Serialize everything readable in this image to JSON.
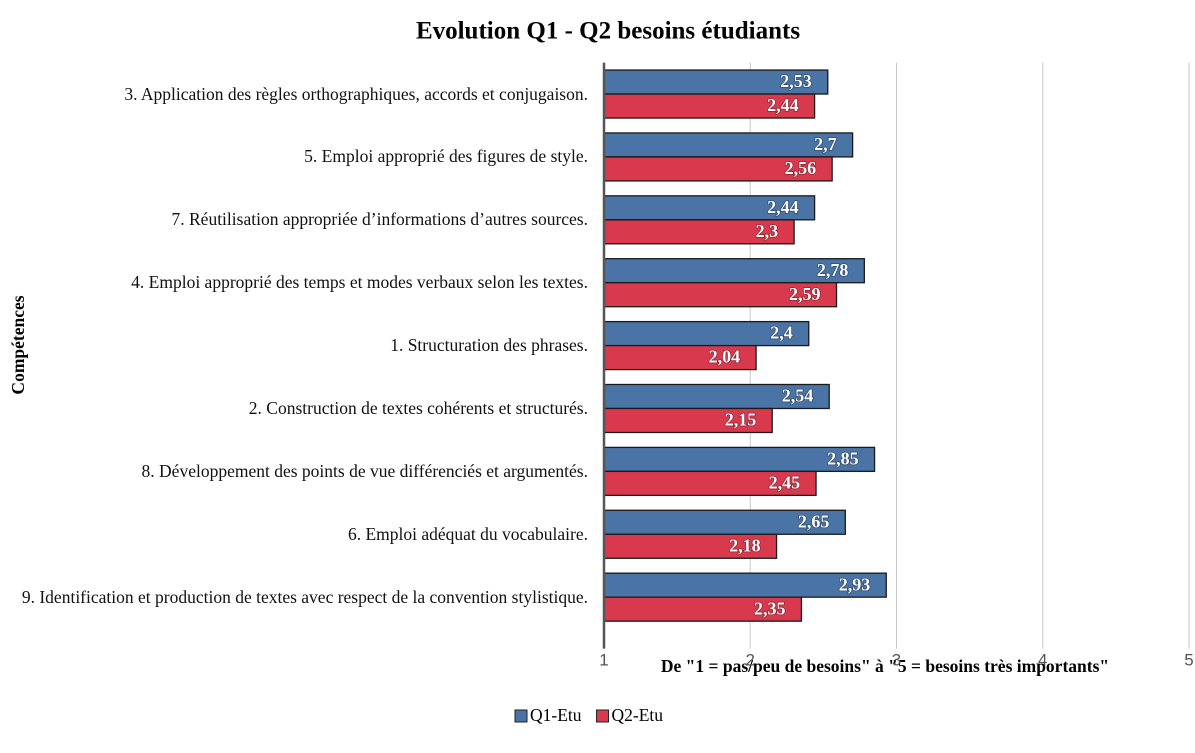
{
  "chart_data": {
    "type": "bar",
    "orientation": "horizontal",
    "title": "Evolution Q1 - Q2 besoins étudiants",
    "x_label": "De \"1 = pas/peu de besoins\" à \"5 = besoins très importants\"",
    "y_label": "Compétences",
    "categories": [
      "3. Application des règles orthographiques, accords et conjugaison.",
      "5. Emploi approprié des figures de style.",
      "7. Réutilisation appropriée d’informations d’autres sources.",
      "4. Emploi approprié des temps et modes verbaux selon les textes.",
      "1. Structuration des phrases.",
      "2. Construction de textes cohérents et structurés.",
      "8. Développement des points de vue différenciés et argumentés.",
      "6. Emploi adéquat du vocabulaire.",
      "9. Identification et production de textes avec respect de la convention stylistique."
    ],
    "series": [
      {
        "name": "Q1-Etu",
        "color": "#4a73a6",
        "values": [
          2.53,
          2.7,
          2.44,
          2.78,
          2.4,
          2.54,
          2.85,
          2.65,
          2.93
        ],
        "value_labels": [
          "2,53",
          "2,7",
          "2,44",
          "2,78",
          "2,4",
          "2,54",
          "2,85",
          "2,65",
          "2,93"
        ]
      },
      {
        "name": "Q2-Etu",
        "color": "#d9394d",
        "values": [
          2.44,
          2.56,
          2.3,
          2.59,
          2.04,
          2.15,
          2.45,
          2.18,
          2.35
        ],
        "value_labels": [
          "2,44",
          "2,56",
          "2,3",
          "2,59",
          "2,04",
          "2,15",
          "2,45",
          "2,18",
          "2,35"
        ]
      }
    ],
    "xlim": [
      1,
      5
    ],
    "xticks": [
      1,
      2,
      3,
      4,
      5
    ],
    "grid": true,
    "legend": "bottom"
  }
}
